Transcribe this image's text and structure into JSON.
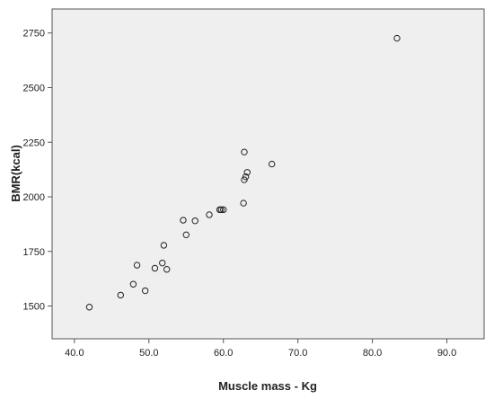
{
  "chart_data": {
    "type": "scatter",
    "title": "",
    "xlabel": "Muscle mass - Kg",
    "ylabel": "BMR(kcal)",
    "xlim": [
      37.0,
      95.0
    ],
    "ylim": [
      1350,
      2860
    ],
    "x_ticks": [
      40.0,
      50.0,
      60.0,
      70.0,
      80.0,
      90.0
    ],
    "x_tick_labels": [
      "40.0",
      "50.0",
      "60.0",
      "70.0",
      "80.0",
      "90.0"
    ],
    "y_ticks": [
      1500,
      1750,
      2000,
      2250,
      2500,
      2750
    ],
    "y_tick_labels": [
      "1500",
      "1750",
      "2000",
      "2250",
      "2500",
      "2750"
    ],
    "grid": false,
    "colors": {
      "plot_background": "#efefef",
      "marker_stroke": "#222222",
      "axis": "#555555"
    },
    "series": [
      {
        "points": [
          {
            "x": 42.0,
            "y": 1495
          },
          {
            "x": 46.2,
            "y": 1550
          },
          {
            "x": 47.9,
            "y": 1600
          },
          {
            "x": 48.4,
            "y": 1687
          },
          {
            "x": 49.5,
            "y": 1570
          },
          {
            "x": 50.8,
            "y": 1673
          },
          {
            "x": 51.8,
            "y": 1697
          },
          {
            "x": 52.0,
            "y": 1778
          },
          {
            "x": 52.4,
            "y": 1668
          },
          {
            "x": 54.6,
            "y": 1893
          },
          {
            "x": 55.0,
            "y": 1826
          },
          {
            "x": 56.2,
            "y": 1890
          },
          {
            "x": 58.1,
            "y": 1918
          },
          {
            "x": 59.5,
            "y": 1941
          },
          {
            "x": 59.7,
            "y": 1941
          },
          {
            "x": 60.0,
            "y": 1941
          },
          {
            "x": 62.7,
            "y": 1971
          },
          {
            "x": 62.8,
            "y": 2078
          },
          {
            "x": 62.8,
            "y": 2205
          },
          {
            "x": 63.0,
            "y": 2092
          },
          {
            "x": 63.2,
            "y": 2112
          },
          {
            "x": 66.5,
            "y": 2150
          },
          {
            "x": 83.3,
            "y": 2726
          }
        ]
      }
    ]
  }
}
